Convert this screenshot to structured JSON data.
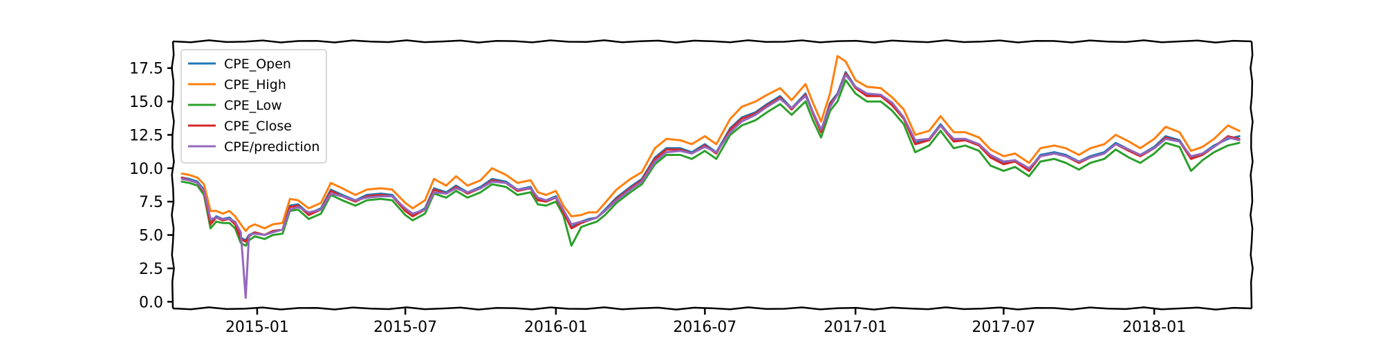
{
  "chart_data": {
    "type": "line",
    "title": "",
    "xlabel": "",
    "ylabel": "",
    "x_range": [
      "2014-09-20",
      "2018-04-30"
    ],
    "ylim": [
      -0.5,
      19.5
    ],
    "y_ticks": [
      0.0,
      2.5,
      5.0,
      7.5,
      10.0,
      12.5,
      15.0,
      17.5
    ],
    "y_tick_labels": [
      "0.0",
      "2.5",
      "5.0",
      "7.5",
      "10.0",
      "12.5",
      "15.0",
      "17.5"
    ],
    "x_ticks": [
      "2015-01-01",
      "2015-07-01",
      "2016-01-01",
      "2016-07-01",
      "2017-01-01",
      "2017-07-01",
      "2018-01-01"
    ],
    "x_tick_labels": [
      "2015-01",
      "2015-07",
      "2016-01",
      "2016-07",
      "2017-01",
      "2017-07",
      "2018-01"
    ],
    "grid": false,
    "legend_position": "top-left",
    "style": "xkcd-like wobbly axes frame",
    "dates": [
      "2014-10-01",
      "2014-10-10",
      "2014-10-20",
      "2014-10-28",
      "2014-11-05",
      "2014-11-12",
      "2014-11-20",
      "2014-11-28",
      "2014-12-05",
      "2014-12-12",
      "2014-12-18",
      "2014-12-22",
      "2014-12-29",
      "2015-01-10",
      "2015-01-20",
      "2015-02-01",
      "2015-02-10",
      "2015-02-20",
      "2015-03-05",
      "2015-03-20",
      "2015-04-01",
      "2015-04-15",
      "2015-05-01",
      "2015-05-15",
      "2015-06-01",
      "2015-06-15",
      "2015-07-01",
      "2015-07-10",
      "2015-07-25",
      "2015-08-05",
      "2015-08-20",
      "2015-09-01",
      "2015-09-15",
      "2015-10-01",
      "2015-10-15",
      "2015-11-01",
      "2015-11-15",
      "2015-12-01",
      "2015-12-10",
      "2015-12-20",
      "2016-01-01",
      "2016-01-10",
      "2016-01-20",
      "2016-02-01",
      "2016-02-10",
      "2016-02-20",
      "2016-03-01",
      "2016-03-15",
      "2016-04-01",
      "2016-04-15",
      "2016-05-01",
      "2016-05-15",
      "2016-06-01",
      "2016-06-15",
      "2016-07-01",
      "2016-07-15",
      "2016-08-01",
      "2016-08-15",
      "2016-09-01",
      "2016-09-15",
      "2016-10-01",
      "2016-10-15",
      "2016-11-01",
      "2016-11-10",
      "2016-11-20",
      "2016-12-01",
      "2016-12-10",
      "2016-12-20",
      "2017-01-01",
      "2017-01-15",
      "2017-02-01",
      "2017-02-15",
      "2017-03-01",
      "2017-03-15",
      "2017-04-01",
      "2017-04-15",
      "2017-05-01",
      "2017-05-15",
      "2017-06-01",
      "2017-06-15",
      "2017-07-01",
      "2017-07-15",
      "2017-08-01",
      "2017-08-15",
      "2017-09-01",
      "2017-09-15",
      "2017-10-01",
      "2017-10-15",
      "2017-11-01",
      "2017-11-15",
      "2017-12-01",
      "2017-12-15",
      "2018-01-01",
      "2018-01-15",
      "2018-02-01",
      "2018-02-15",
      "2018-03-01",
      "2018-03-15",
      "2018-04-01",
      "2018-04-15"
    ],
    "series": [
      {
        "name": "CPE_Open",
        "color": "#1f77b4",
        "values": [
          9.3,
          9.2,
          9.0,
          8.4,
          5.9,
          6.4,
          6.2,
          6.3,
          5.9,
          4.8,
          4.6,
          5.0,
          5.2,
          5.0,
          5.3,
          5.4,
          7.2,
          7.3,
          6.6,
          7.0,
          8.4,
          8.0,
          7.6,
          8.0,
          8.1,
          8.0,
          6.9,
          6.5,
          7.0,
          8.5,
          8.2,
          8.7,
          8.2,
          8.6,
          9.2,
          9.0,
          8.4,
          8.6,
          7.7,
          7.6,
          7.9,
          6.8,
          5.6,
          6.0,
          6.2,
          6.3,
          6.9,
          7.8,
          8.6,
          9.2,
          10.8,
          11.5,
          11.5,
          11.2,
          11.8,
          11.2,
          13.0,
          13.8,
          14.2,
          14.8,
          15.4,
          14.5,
          15.6,
          14.2,
          12.8,
          14.9,
          15.6,
          17.2,
          16.1,
          15.5,
          15.5,
          14.8,
          13.8,
          11.9,
          12.2,
          13.3,
          12.1,
          12.2,
          11.8,
          10.9,
          10.4,
          10.6,
          9.9,
          11.0,
          11.2,
          11.0,
          10.5,
          10.9,
          11.2,
          11.9,
          11.4,
          11.0,
          11.6,
          12.4,
          12.1,
          10.8,
          11.1,
          11.7,
          12.2,
          12.4
        ]
      },
      {
        "name": "CPE_High",
        "color": "#ff7f0e",
        "values": [
          9.6,
          9.5,
          9.3,
          8.8,
          6.8,
          6.8,
          6.6,
          6.8,
          6.4,
          5.8,
          5.3,
          5.6,
          5.8,
          5.5,
          5.8,
          5.9,
          7.7,
          7.6,
          7.0,
          7.4,
          8.9,
          8.5,
          8.0,
          8.4,
          8.5,
          8.4,
          7.4,
          7.0,
          7.6,
          9.2,
          8.7,
          9.4,
          8.7,
          9.1,
          10.0,
          9.5,
          8.9,
          9.1,
          8.2,
          8.0,
          8.3,
          7.2,
          6.4,
          6.5,
          6.7,
          6.7,
          7.4,
          8.4,
          9.2,
          9.7,
          11.5,
          12.2,
          12.1,
          11.8,
          12.4,
          11.8,
          13.7,
          14.6,
          15.0,
          15.5,
          16.0,
          15.1,
          16.3,
          14.9,
          13.5,
          15.6,
          18.4,
          18.0,
          16.6,
          16.1,
          16.0,
          15.3,
          14.4,
          12.5,
          12.8,
          13.9,
          12.7,
          12.7,
          12.3,
          11.4,
          10.9,
          11.1,
          10.4,
          11.5,
          11.7,
          11.5,
          11.0,
          11.5,
          11.8,
          12.5,
          12.0,
          11.5,
          12.2,
          13.1,
          12.7,
          11.3,
          11.6,
          12.2,
          13.2,
          12.8
        ]
      },
      {
        "name": "CPE_Low",
        "color": "#2ca02c",
        "values": [
          9.0,
          8.9,
          8.7,
          8.0,
          5.5,
          6.0,
          5.9,
          5.9,
          5.5,
          4.4,
          4.2,
          4.6,
          4.9,
          4.7,
          5.0,
          5.1,
          6.8,
          6.9,
          6.2,
          6.6,
          8.0,
          7.6,
          7.2,
          7.6,
          7.7,
          7.6,
          6.5,
          6.1,
          6.6,
          8.1,
          7.8,
          8.3,
          7.8,
          8.2,
          8.8,
          8.6,
          8.0,
          8.2,
          7.3,
          7.2,
          7.5,
          6.5,
          4.2,
          5.6,
          5.8,
          6.0,
          6.5,
          7.4,
          8.2,
          8.8,
          10.3,
          11.0,
          11.0,
          10.7,
          11.3,
          10.7,
          12.5,
          13.2,
          13.6,
          14.2,
          14.8,
          14.0,
          15.0,
          13.6,
          12.3,
          14.3,
          15.0,
          16.6,
          15.6,
          15.0,
          15.0,
          14.3,
          13.3,
          11.2,
          11.7,
          12.8,
          11.5,
          11.7,
          11.3,
          10.2,
          9.8,
          10.1,
          9.4,
          10.5,
          10.7,
          10.4,
          9.9,
          10.4,
          10.7,
          11.4,
          10.8,
          10.4,
          11.1,
          11.9,
          11.6,
          9.8,
          10.6,
          11.2,
          11.7,
          11.9
        ]
      },
      {
        "name": "CPE_Close",
        "color": "#d62728",
        "values": [
          9.3,
          9.1,
          8.9,
          8.2,
          5.8,
          6.3,
          6.1,
          6.2,
          5.8,
          4.7,
          4.5,
          4.9,
          5.2,
          5.0,
          5.3,
          5.4,
          7.1,
          7.2,
          6.5,
          6.9,
          8.3,
          7.9,
          7.5,
          7.9,
          8.0,
          7.9,
          6.8,
          6.4,
          6.9,
          8.4,
          8.1,
          8.6,
          8.1,
          8.5,
          9.1,
          8.9,
          8.3,
          8.5,
          7.6,
          7.5,
          7.8,
          6.7,
          5.5,
          5.9,
          6.1,
          6.3,
          6.8,
          7.7,
          8.5,
          9.1,
          10.7,
          11.4,
          11.4,
          11.1,
          11.7,
          11.1,
          12.9,
          13.7,
          14.1,
          14.7,
          15.3,
          14.4,
          15.5,
          14.1,
          12.7,
          14.8,
          15.5,
          17.1,
          16.0,
          15.4,
          15.4,
          14.7,
          13.7,
          11.8,
          12.1,
          13.2,
          12.0,
          12.1,
          11.7,
          10.8,
          10.3,
          10.5,
          9.8,
          10.9,
          11.1,
          10.9,
          10.4,
          10.8,
          11.1,
          11.8,
          11.3,
          10.9,
          11.5,
          12.3,
          12.0,
          10.7,
          11.0,
          11.6,
          12.4,
          12.2
        ]
      },
      {
        "name": "CPE/prediction",
        "color": "#9467bd",
        "values": [
          9.2,
          9.1,
          8.9,
          8.3,
          6.2,
          6.3,
          6.2,
          6.2,
          6.0,
          5.2,
          0.3,
          5.0,
          5.1,
          5.0,
          5.2,
          5.4,
          6.9,
          7.1,
          6.7,
          6.9,
          8.1,
          7.9,
          7.6,
          7.8,
          7.9,
          7.9,
          7.0,
          6.6,
          6.9,
          8.2,
          8.1,
          8.5,
          8.2,
          8.5,
          9.0,
          8.9,
          8.4,
          8.5,
          7.8,
          7.6,
          7.8,
          6.9,
          5.8,
          6.0,
          6.1,
          6.3,
          6.8,
          7.6,
          8.4,
          9.0,
          10.5,
          11.2,
          11.3,
          11.1,
          11.6,
          11.2,
          12.7,
          13.5,
          14.0,
          14.6,
          15.2,
          14.5,
          15.4,
          14.2,
          12.9,
          14.6,
          15.5,
          17.0,
          16.1,
          15.6,
          15.5,
          14.9,
          13.8,
          12.1,
          12.2,
          13.2,
          12.2,
          12.2,
          11.8,
          11.0,
          10.5,
          10.6,
          10.0,
          10.9,
          11.1,
          10.9,
          10.5,
          10.8,
          11.1,
          11.8,
          11.4,
          11.0,
          11.5,
          12.2,
          12.0,
          10.9,
          11.1,
          11.6,
          12.3,
          12.1
        ]
      }
    ]
  }
}
